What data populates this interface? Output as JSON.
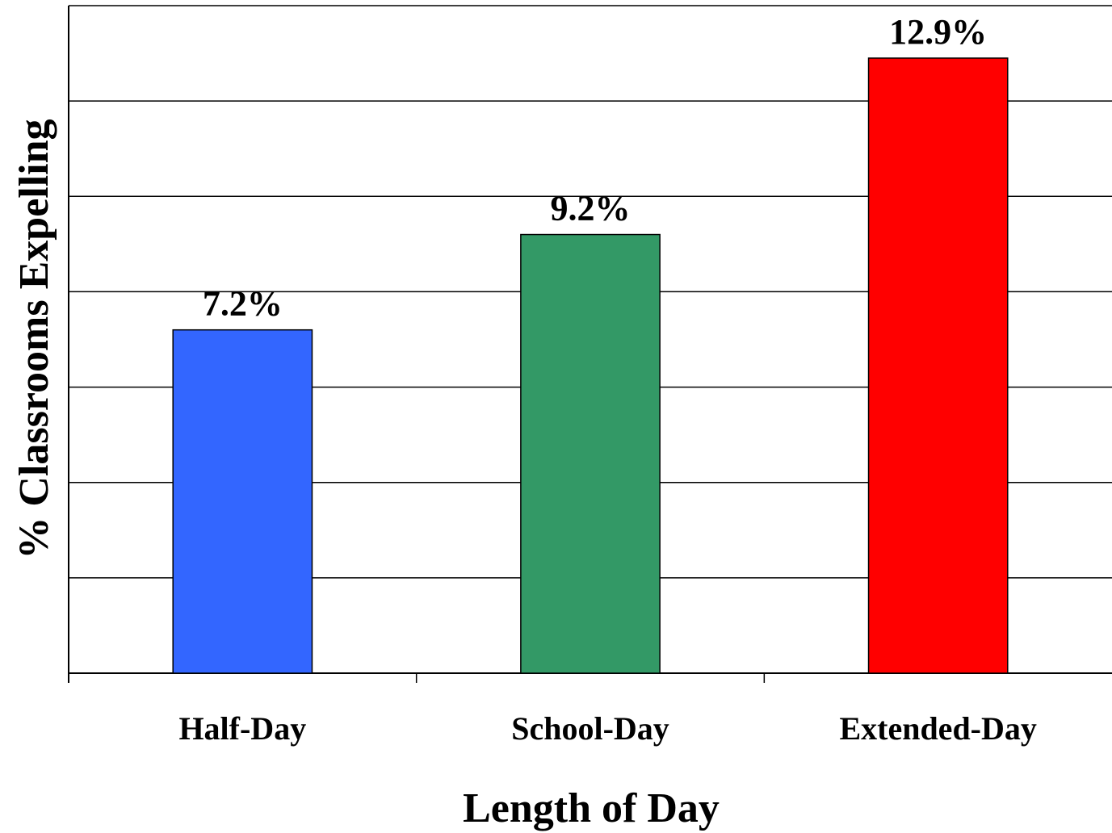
{
  "chart_data": {
    "type": "bar",
    "categories": [
      "Half-Day",
      "School-Day",
      "Extended-Day"
    ],
    "values": [
      7.2,
      9.2,
      12.9
    ],
    "data_labels": [
      "7.2%",
      "9.2%",
      "12.9%"
    ],
    "colors": [
      "#3366ff",
      "#339966",
      "#ff0000"
    ],
    "title": "",
    "xlabel": "Length of Day",
    "ylabel": "% Classrooms Expelling",
    "ylim": [
      0,
      14
    ],
    "ytick_step": 2,
    "y_tick_labels_shown": false,
    "grid": true,
    "legend": "none"
  }
}
